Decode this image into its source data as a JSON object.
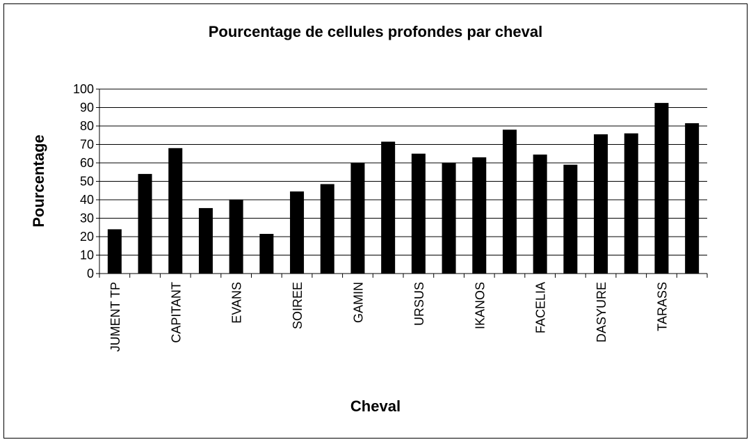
{
  "chart_data": {
    "type": "bar",
    "title": "Pourcentage de cellules profondes par cheval",
    "x_label": "Cheval",
    "y_label": "Pourcentage",
    "categories": [
      "JUMENT TP",
      null,
      "CAPITANT",
      null,
      "EVANS",
      null,
      "SOIREE",
      null,
      "GAMIN",
      null,
      "URSUS",
      null,
      "IKANOS",
      null,
      "FACELIA",
      null,
      "DASYURE",
      null,
      "TARASS",
      null
    ],
    "values": [
      24,
      54,
      68,
      35.5,
      40,
      21.5,
      44.5,
      48.5,
      60,
      71.5,
      65,
      60,
      63,
      78,
      64.5,
      59,
      75.5,
      76,
      92.5,
      81.5
    ],
    "color": "#000000",
    "ylim": [
      0,
      100
    ],
    "yticks": [
      0,
      10,
      20,
      30,
      40,
      50,
      60,
      70,
      80,
      90,
      100
    ],
    "grid": true
  }
}
